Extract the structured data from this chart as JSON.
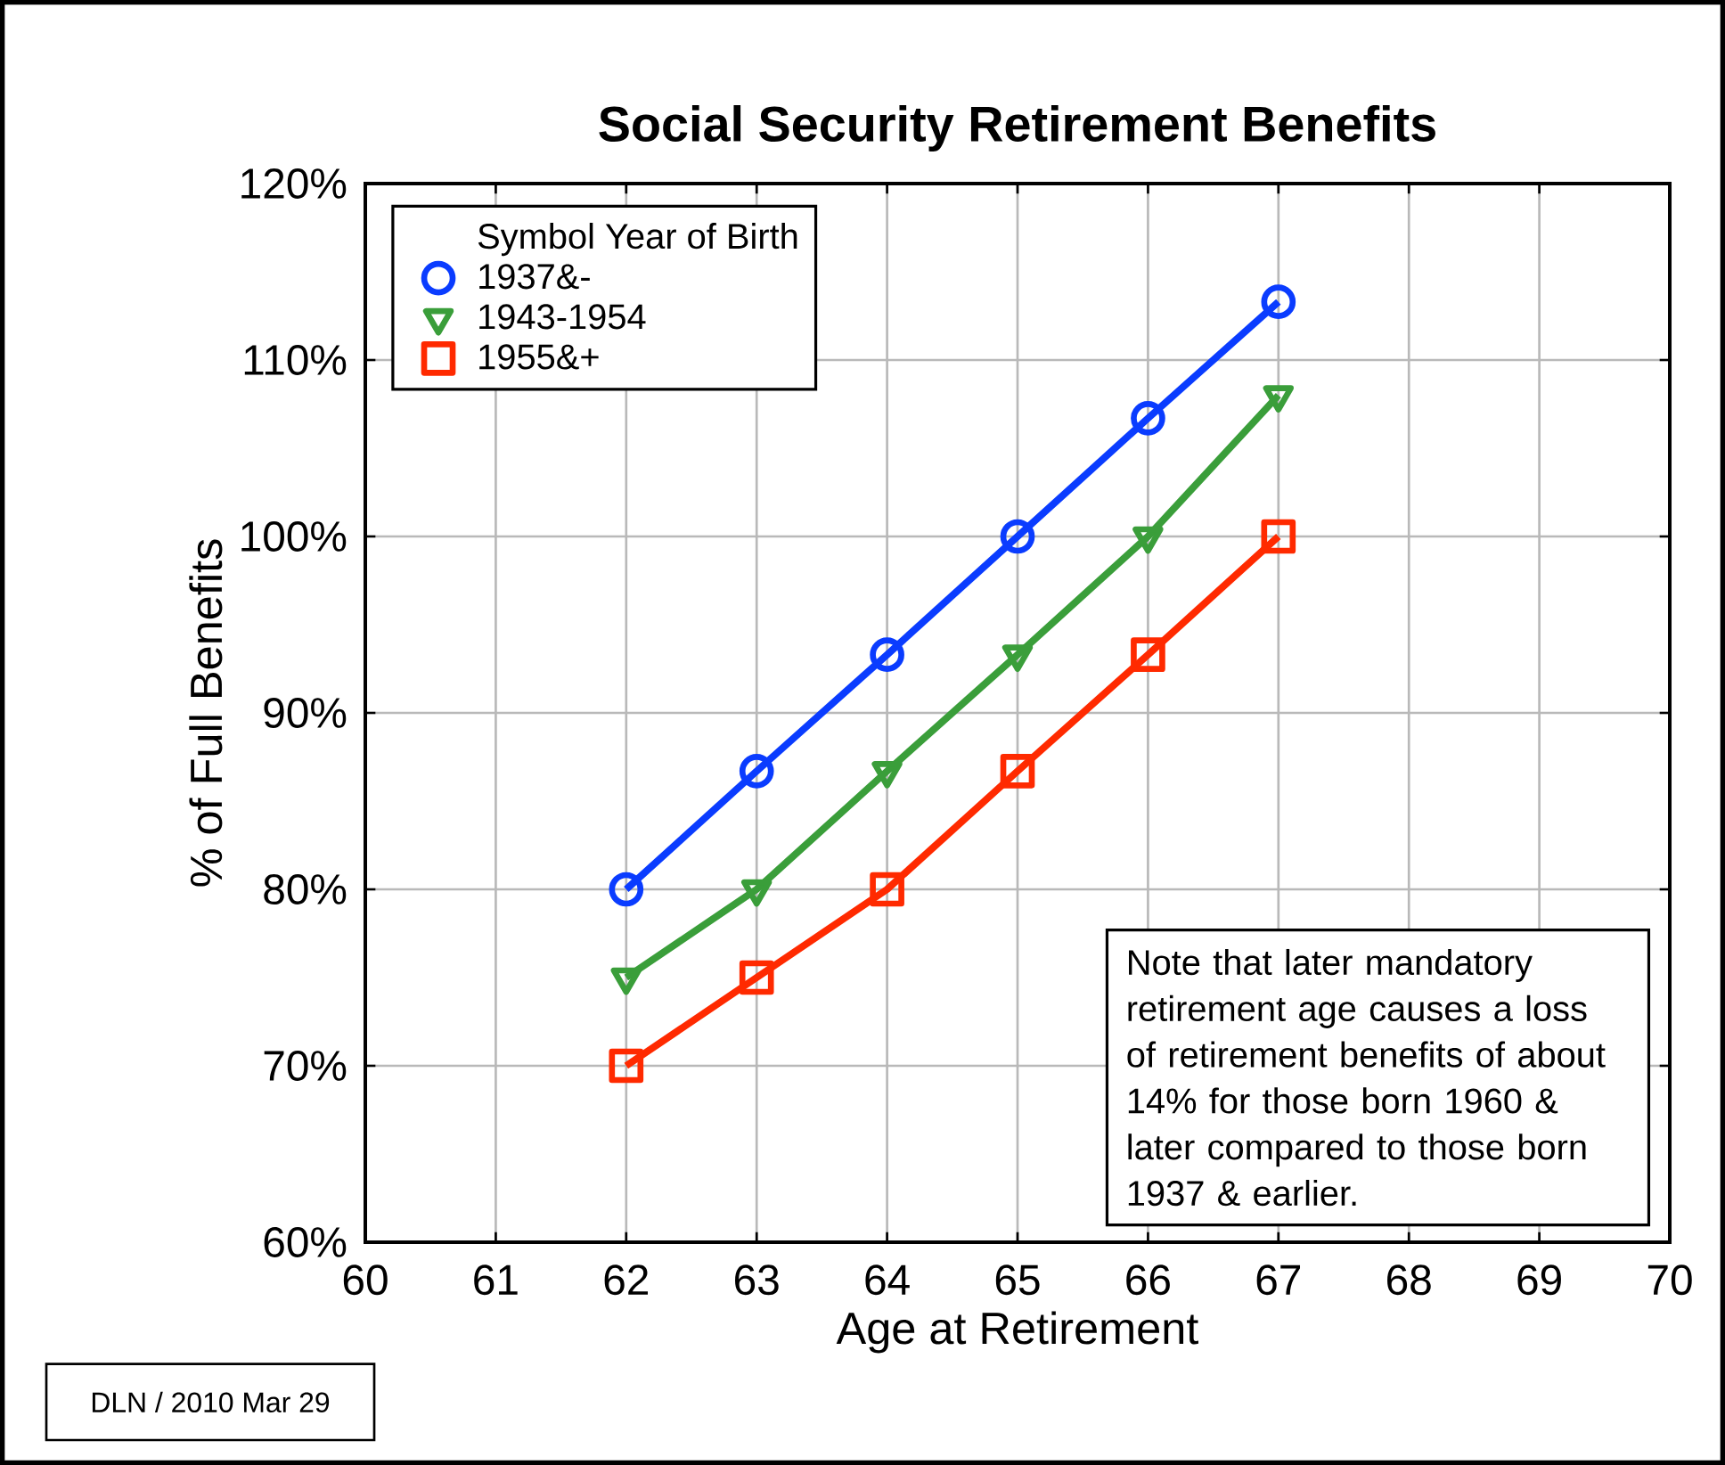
{
  "chart_data": {
    "type": "line",
    "title": "Social Security Retirement Benefits",
    "xlabel": "Age at Retirement",
    "ylabel": "% of Full Benefits",
    "legend_title": "Symbol    Year of Birth",
    "x": [
      62,
      63,
      64,
      65,
      66,
      67
    ],
    "series": [
      {
        "name": "1937&-",
        "color": "#0a3cff",
        "marker": "circle",
        "values": [
          80,
          86.7,
          93.3,
          100,
          106.7,
          113.3
        ]
      },
      {
        "name": "1943-1954",
        "color": "#3a9e3a",
        "marker": "triangle",
        "values": [
          75,
          80,
          86.7,
          93.3,
          100,
          108
        ]
      },
      {
        "name": "1955&+",
        "color": "#ff2a00",
        "marker": "square",
        "values": [
          70,
          75,
          80,
          86.7,
          93.3,
          100
        ]
      }
    ],
    "xlim": [
      60,
      70
    ],
    "xticks": [
      60,
      61,
      62,
      63,
      64,
      65,
      66,
      67,
      68,
      69,
      70
    ],
    "ylim": [
      60,
      120
    ],
    "yticks": [
      {
        "value": 60,
        "label": "60%"
      },
      {
        "value": 70,
        "label": "70%"
      },
      {
        "value": 80,
        "label": "80%"
      },
      {
        "value": 90,
        "label": "90%"
      },
      {
        "value": 100,
        "label": "100%"
      },
      {
        "value": 110,
        "label": "110%"
      },
      {
        "value": 120,
        "label": "120%"
      }
    ],
    "grid": true,
    "legend": "top left",
    "line_style": "solid",
    "annotations": [
      "Note that later mandatory retirement age causes a loss of retirement benefits of about 14% for those born 1960 & later compared to those born 1937 & earlier.",
      "DLN / 2010 Mar 29"
    ]
  }
}
